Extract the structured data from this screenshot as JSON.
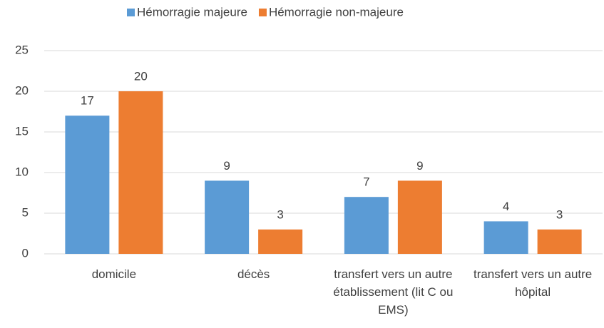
{
  "chart_data": {
    "type": "bar",
    "categories": [
      "domicile",
      "décès",
      "transfert vers un autre établissement (lit C ou EMS)",
      "transfert vers un autre hôpital"
    ],
    "series": [
      {
        "name": "Hémorragie majeure",
        "color": "#5b9bd5",
        "values": [
          17,
          9,
          7,
          4
        ]
      },
      {
        "name": "Hémorragie non-majeure",
        "color": "#ed7d31",
        "values": [
          20,
          3,
          9,
          3
        ]
      }
    ],
    "ylim": [
      0,
      25
    ],
    "yticks": [
      0,
      5,
      10,
      15,
      20,
      25
    ],
    "grid": true,
    "legend": "top"
  }
}
